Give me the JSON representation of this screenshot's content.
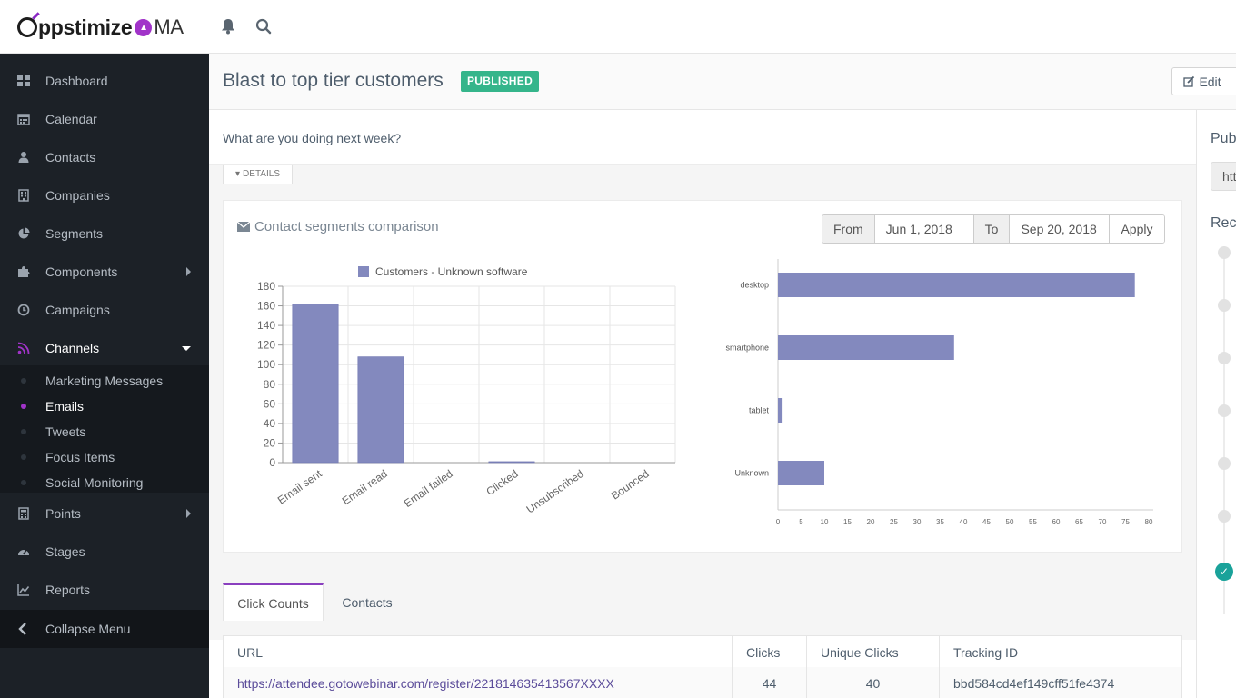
{
  "app": {
    "brand_left": "ppstimize",
    "brand_right": "MA"
  },
  "sidebar": {
    "items": [
      {
        "label": "Dashboard",
        "icon": "grid-icon"
      },
      {
        "label": "Calendar",
        "icon": "calendar-icon"
      },
      {
        "label": "Contacts",
        "icon": "user-icon"
      },
      {
        "label": "Companies",
        "icon": "building-icon"
      },
      {
        "label": "Segments",
        "icon": "pie-icon"
      },
      {
        "label": "Components",
        "icon": "puzzle-icon"
      },
      {
        "label": "Campaigns",
        "icon": "clock-icon"
      },
      {
        "label": "Channels",
        "icon": "rss-icon"
      },
      {
        "label": "Points",
        "icon": "calculator-icon"
      },
      {
        "label": "Stages",
        "icon": "tachometer-icon"
      },
      {
        "label": "Reports",
        "icon": "line-chart-icon"
      }
    ],
    "channels_sub": [
      "Marketing Messages",
      "Emails",
      "Tweets",
      "Focus Items",
      "Social Monitoring"
    ],
    "collapse": "Collapse Menu"
  },
  "header": {
    "title": "Blast to top tier customers",
    "status": "PUBLISHED",
    "edit": "Edit"
  },
  "main": {
    "description": "What are you doing next week?",
    "details": "DETAILS",
    "panel_title": "Contact segments comparison",
    "date": {
      "from_label": "From",
      "from_value": "Jun 1, 2018",
      "to_label": "To",
      "to_value": "Sep 20, 2018",
      "apply": "Apply"
    }
  },
  "chart_data": [
    {
      "type": "bar",
      "legend": [
        "Customers - Unknown software"
      ],
      "categories": [
        "Email sent",
        "Email read",
        "Email failed",
        "Clicked",
        "Unsubscribed",
        "Bounced"
      ],
      "series": [
        {
          "name": "Customers - Unknown software",
          "values": [
            162,
            108,
            0,
            1,
            0,
            0
          ]
        }
      ],
      "ylim": [
        0,
        180
      ],
      "yticks": [
        0,
        20,
        40,
        60,
        80,
        100,
        120,
        140,
        160,
        180
      ],
      "color": "#8389be"
    },
    {
      "type": "bar",
      "orientation": "horizontal",
      "categories": [
        "desktop",
        "smartphone",
        "tablet",
        "Unknown"
      ],
      "values": [
        77,
        38,
        1,
        10
      ],
      "xlim": [
        0,
        80
      ],
      "xticks": [
        0,
        5,
        10,
        15,
        20,
        25,
        30,
        35,
        40,
        45,
        50,
        55,
        60,
        65,
        70,
        75,
        80
      ],
      "color": "#8389be"
    }
  ],
  "tabs": [
    {
      "label": "Click Counts",
      "active": true
    },
    {
      "label": "Contacts",
      "active": false
    }
  ],
  "table": {
    "headers": [
      "URL",
      "Clicks",
      "Unique Clicks",
      "Tracking ID"
    ],
    "rows": [
      [
        "https://attendee.gotowebinar.com/register/221814635413567XXXX",
        "44",
        "40",
        "bbd584cd4ef149cff51fe4374"
      ]
    ]
  },
  "right": {
    "heading1": "Pub",
    "url_value": "htt",
    "heading2": "Rec"
  }
}
